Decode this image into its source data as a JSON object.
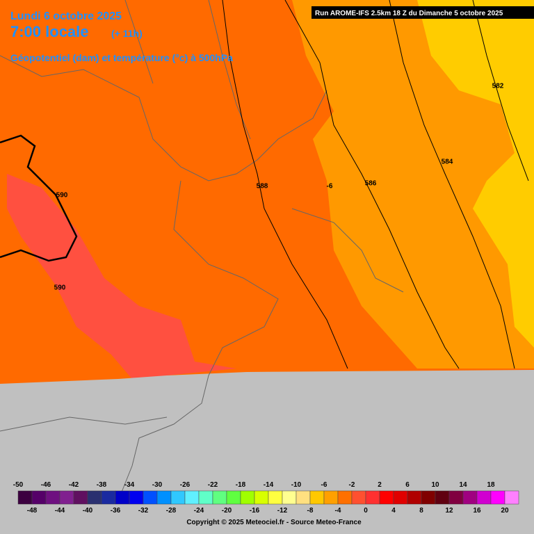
{
  "header": {
    "date": "Lundi 6 octobre 2025",
    "time": "7:00 locale",
    "lead": "(+ 11h)",
    "parameter": "Géopotentiel (dam) et température (°c) à 500hPa"
  },
  "run": "Run AROME-IFS 2.5km 18 Z du Dimanche 5 octobre 2025",
  "contour_labels": [
    "590",
    "590",
    "588",
    "-6",
    "586",
    "584",
    "582"
  ],
  "legend": [
    {
      "value": -50,
      "color": "#3c0040"
    },
    {
      "value": -48,
      "color": "#550068"
    },
    {
      "value": -46,
      "color": "#6e1080"
    },
    {
      "value": -44,
      "color": "#80208f"
    },
    {
      "value": -42,
      "color": "#601060"
    },
    {
      "value": -40,
      "color": "#2a3070"
    },
    {
      "value": -38,
      "color": "#1a2aa0"
    },
    {
      "value": -36,
      "color": "#0000c8"
    },
    {
      "value": -34,
      "color": "#0000f0"
    },
    {
      "value": -32,
      "color": "#0050ff"
    },
    {
      "value": -30,
      "color": "#0090ff"
    },
    {
      "value": -28,
      "color": "#30c8ff"
    },
    {
      "value": -26,
      "color": "#60f0ff"
    },
    {
      "value": -24,
      "color": "#60ffc8"
    },
    {
      "value": -22,
      "color": "#60ff80"
    },
    {
      "value": -20,
      "color": "#60ff40"
    },
    {
      "value": -18,
      "color": "#a0ff00"
    },
    {
      "value": -16,
      "color": "#d8ff00"
    },
    {
      "value": -14,
      "color": "#ffff40"
    },
    {
      "value": -12,
      "color": "#ffff90"
    },
    {
      "value": -10,
      "color": "#ffe080"
    },
    {
      "value": -8,
      "color": "#ffc800"
    },
    {
      "value": -6,
      "color": "#ffa000"
    },
    {
      "value": -4,
      "color": "#ff7000"
    },
    {
      "value": -2,
      "color": "#ff5030"
    },
    {
      "value": 0,
      "color": "#ff3030"
    },
    {
      "value": 2,
      "color": "#ff0000"
    },
    {
      "value": 4,
      "color": "#e00000"
    },
    {
      "value": 6,
      "color": "#b00000"
    },
    {
      "value": 8,
      "color": "#800000"
    },
    {
      "value": 10,
      "color": "#600010"
    },
    {
      "value": 12,
      "color": "#800040"
    },
    {
      "value": 14,
      "color": "#a00080"
    },
    {
      "value": 16,
      "color": "#d000d0"
    },
    {
      "value": 18,
      "color": "#ff00ff"
    },
    {
      "value": 20,
      "color": "#ff80ff"
    }
  ],
  "copyright": "Copyright © 2025 Meteociel.fr - Source Meteo-France"
}
